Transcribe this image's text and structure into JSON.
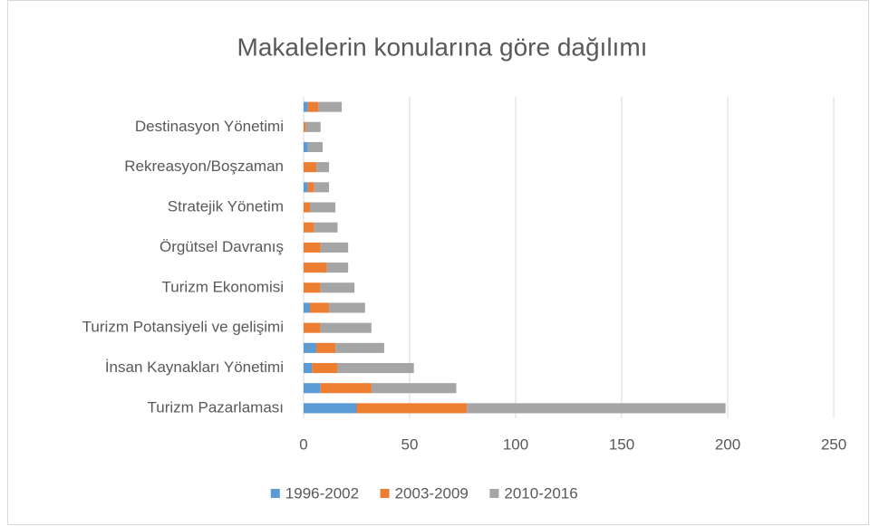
{
  "chart_data": {
    "type": "stacked-barh",
    "title": "Makalelerin  konularına göre dağılımı",
    "categories": [
      "Turizm Pazarlaması",
      null,
      "İnsan Kaynakları Yönetimi",
      null,
      "Turizm Potansiyeli ve gelişimi",
      null,
      "Turizm Ekonomisi",
      null,
      "Örgütsel Davranış",
      null,
      "Stratejik Yönetim",
      null,
      "Rekreasyon/Boşzaman",
      null,
      "Destinasyon Yönetimi",
      null
    ],
    "series": [
      {
        "name": "1996-2002",
        "color": "#5b9bd5",
        "values": [
          25,
          8,
          4,
          6,
          0,
          3,
          0,
          0,
          0,
          0,
          0,
          2,
          0,
          2,
          0,
          2
        ]
      },
      {
        "name": "2003-2009",
        "color": "#ed7d31",
        "values": [
          52,
          24,
          12,
          9,
          8,
          9,
          8,
          11,
          8,
          5,
          3,
          3,
          6,
          0,
          1,
          5
        ]
      },
      {
        "name": "2010-2016",
        "color": "#a5a5a5",
        "values": [
          122,
          40,
          36,
          23,
          24,
          17,
          16,
          10,
          13,
          11,
          12,
          7,
          6,
          7,
          7,
          11
        ]
      }
    ],
    "xlim": [
      0,
      250
    ],
    "xticks": [
      0,
      50,
      100,
      150,
      200,
      250
    ],
    "grid": true,
    "legend": "bottom"
  }
}
